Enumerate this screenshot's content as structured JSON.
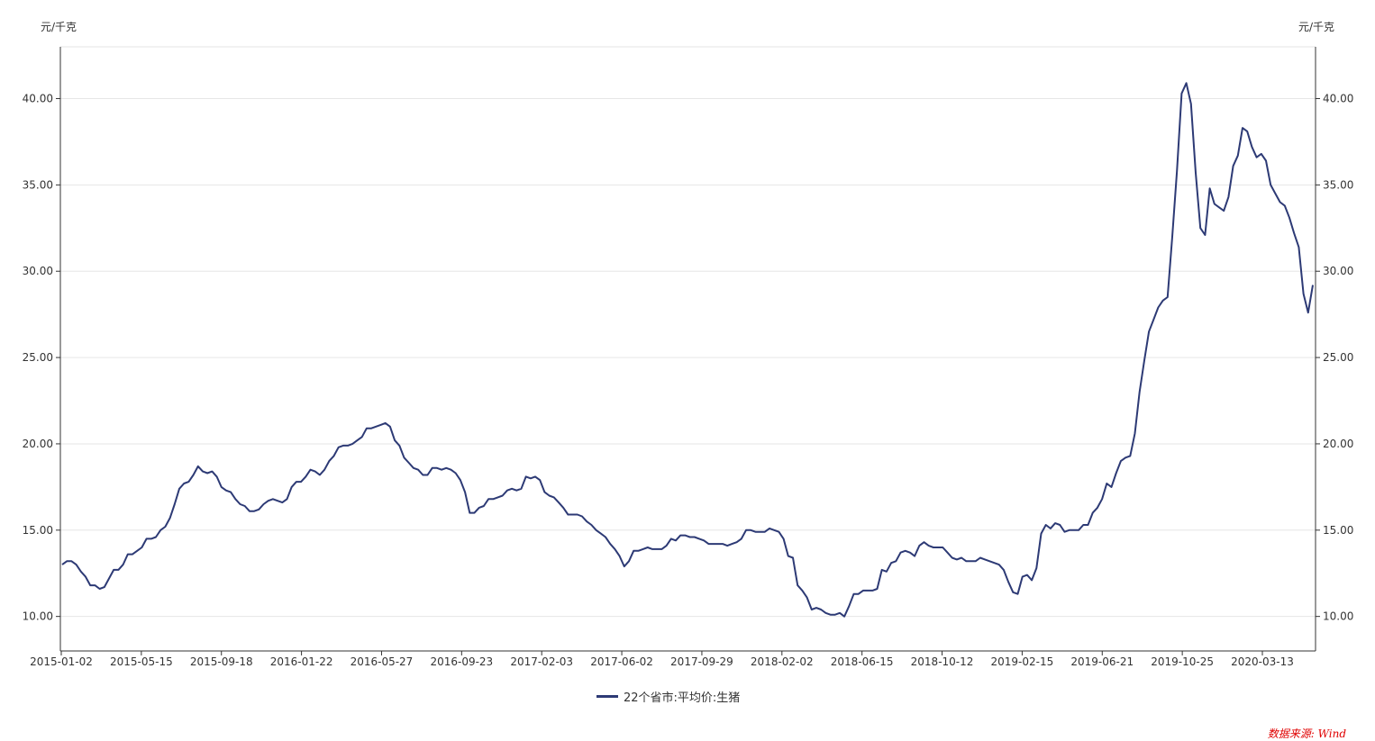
{
  "chart_data": {
    "type": "line",
    "y_unit_left": "元/千克",
    "y_unit_right": "元/千克",
    "ylim": [
      8,
      43
    ],
    "yticks": [
      10,
      15,
      20,
      25,
      30,
      35,
      40
    ],
    "ytick_labels": [
      "10.00",
      "15.00",
      "20.00",
      "25.00",
      "30.00",
      "35.00",
      "40.00"
    ],
    "x_tick_labels": [
      "2015-01-02",
      "2015-05-15",
      "2015-09-18",
      "2016-01-22",
      "2016-05-27",
      "2016-09-23",
      "2017-02-03",
      "2017-06-02",
      "2017-09-29",
      "2018-02-02",
      "2018-06-15",
      "2018-10-12",
      "2019-02-15",
      "2019-06-21",
      "2019-10-25",
      "2020-03-13"
    ],
    "grid": "horizontal",
    "legend_position": "bottom-center",
    "series": [
      {
        "name": "22个省市:平均价:生猪",
        "color": "#2d3a75",
        "values": [
          13.0,
          13.2,
          13.2,
          13.0,
          12.6,
          12.3,
          11.8,
          11.8,
          11.6,
          11.7,
          12.2,
          12.7,
          12.7,
          13.0,
          13.6,
          13.6,
          13.8,
          14.0,
          14.5,
          14.5,
          14.6,
          15.0,
          15.2,
          15.7,
          16.5,
          17.4,
          17.7,
          17.8,
          18.2,
          18.7,
          18.4,
          18.3,
          18.4,
          18.1,
          17.5,
          17.3,
          17.2,
          16.8,
          16.5,
          16.4,
          16.1,
          16.1,
          16.2,
          16.5,
          16.7,
          16.8,
          16.7,
          16.6,
          16.8,
          17.5,
          17.8,
          17.8,
          18.1,
          18.5,
          18.4,
          18.2,
          18.5,
          19.0,
          19.3,
          19.8,
          19.9,
          19.9,
          20.0,
          20.2,
          20.4,
          20.9,
          20.9,
          21.0,
          21.1,
          21.2,
          21.0,
          20.2,
          19.9,
          19.2,
          18.9,
          18.6,
          18.5,
          18.2,
          18.2,
          18.6,
          18.6,
          18.5,
          18.6,
          18.5,
          18.3,
          17.9,
          17.2,
          16.0,
          16.0,
          16.3,
          16.4,
          16.8,
          16.8,
          16.9,
          17.0,
          17.3,
          17.4,
          17.3,
          17.4,
          18.1,
          18.0,
          18.1,
          17.9,
          17.2,
          17.0,
          16.9,
          16.6,
          16.3,
          15.9,
          15.9,
          15.9,
          15.8,
          15.5,
          15.3,
          15.0,
          14.8,
          14.6,
          14.2,
          13.9,
          13.5,
          12.9,
          13.2,
          13.8,
          13.8,
          13.9,
          14.0,
          13.9,
          13.9,
          13.9,
          14.1,
          14.5,
          14.4,
          14.7,
          14.7,
          14.6,
          14.6,
          14.5,
          14.4,
          14.2,
          14.2,
          14.2,
          14.2,
          14.1,
          14.2,
          14.3,
          14.5,
          15.0,
          15.0,
          14.9,
          14.9,
          14.9,
          15.1,
          15.0,
          14.9,
          14.5,
          13.5,
          13.4,
          11.8,
          11.5,
          11.1,
          10.4,
          10.5,
          10.4,
          10.2,
          10.1,
          10.1,
          10.2,
          10.0,
          10.6,
          11.3,
          11.3,
          11.5,
          11.5,
          11.5,
          11.6,
          12.7,
          12.6,
          13.1,
          13.2,
          13.7,
          13.8,
          13.7,
          13.5,
          14.1,
          14.3,
          14.1,
          14.0,
          14.0,
          14.0,
          13.7,
          13.4,
          13.3,
          13.4,
          13.2,
          13.2,
          13.2,
          13.4,
          13.3,
          13.2,
          13.1,
          13.0,
          12.7,
          12.0,
          11.4,
          11.3,
          12.3,
          12.4,
          12.1,
          12.8,
          14.8,
          15.3,
          15.1,
          15.4,
          15.3,
          14.9,
          15.0,
          15.0,
          15.0,
          15.3,
          15.3,
          16.0,
          16.3,
          16.8,
          17.7,
          17.5,
          18.3,
          19.0,
          19.2,
          19.3,
          20.6,
          23.0,
          24.8,
          26.5,
          27.2,
          27.9,
          28.3,
          28.5,
          32.0,
          35.8,
          40.3,
          40.9,
          39.7,
          35.7,
          32.5,
          32.1,
          34.8,
          33.9,
          33.7,
          33.5,
          34.3,
          36.1,
          36.7,
          38.3,
          38.1,
          37.2,
          36.6,
          36.8,
          36.4,
          35.0,
          34.5,
          34.0,
          33.8,
          33.1,
          32.2,
          31.4,
          28.7,
          27.6,
          29.2
        ]
      }
    ]
  },
  "source_text": "数据来源: Wind"
}
